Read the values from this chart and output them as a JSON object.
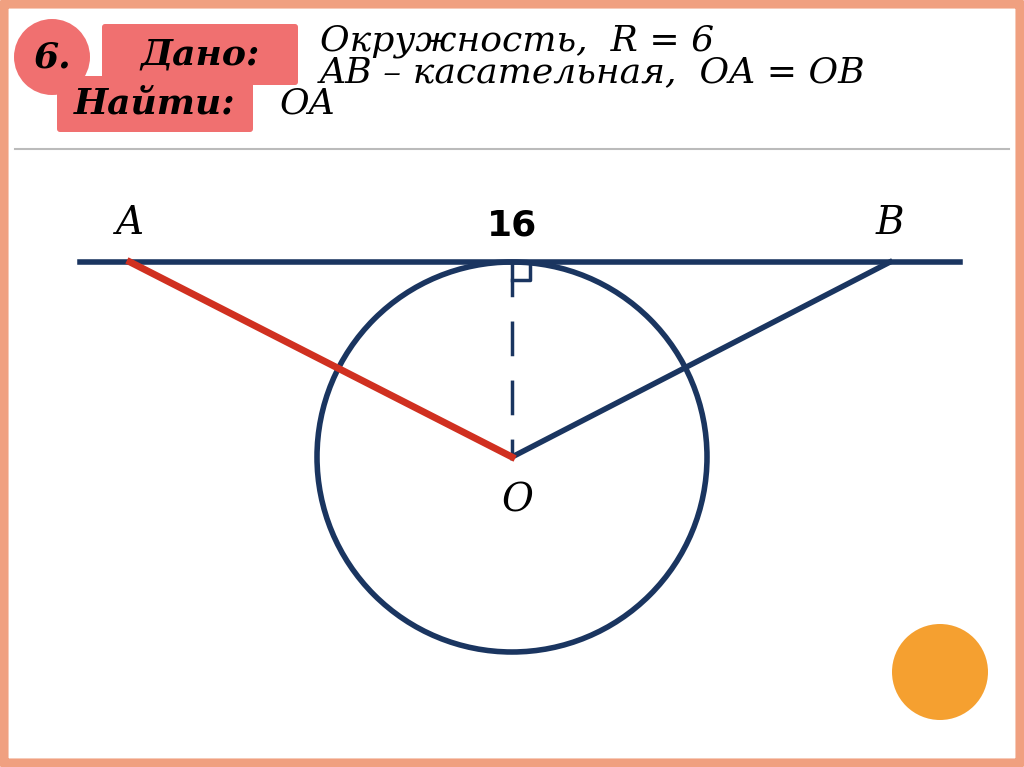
{
  "background_color": "#FFFFFF",
  "border_color": "#F0A080",
  "title_number": "6.",
  "dado_label": "Дано:",
  "dado_bg": "#F07070",
  "line1_text": "Окружность,  R = 6",
  "line2_text": "AB – касательная,  OA = OB",
  "naiti_label": "Найти:",
  "naiti_bg": "#F07070",
  "naiti_text": "OA",
  "circle_color": "#1A3560",
  "line_color": "#1A3560",
  "red_line_color": "#D03020",
  "dashed_color": "#1A3560",
  "text_color": "#000000",
  "label_16": "16",
  "label_A": "A",
  "label_B": "B",
  "label_O": "O",
  "orange_color": "#F5A030"
}
